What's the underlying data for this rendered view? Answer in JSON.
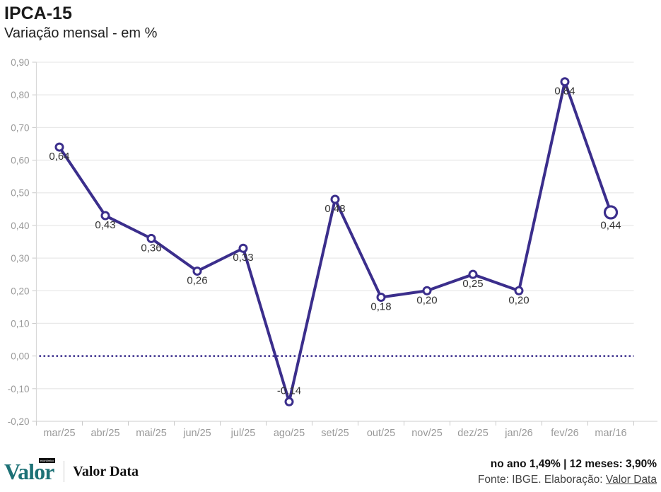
{
  "header": {
    "title": "IPCA-15",
    "subtitle": "Variação mensal - em %"
  },
  "chart_data": {
    "type": "line",
    "title": "IPCA-15",
    "subtitle": "Variação mensal - em %",
    "categories": [
      "mar/25",
      "abr/25",
      "mai/25",
      "jun/25",
      "jul/25",
      "ago/25",
      "set/25",
      "out/25",
      "nov/25",
      "dez/25",
      "jan/26",
      "fev/26",
      "mar/16"
    ],
    "values": [
      0.64,
      0.43,
      0.36,
      0.26,
      0.33,
      -0.14,
      0.48,
      0.18,
      0.2,
      0.25,
      0.2,
      0.84,
      0.44
    ],
    "value_labels": [
      "0,64",
      "0,43",
      "0,36",
      "0,26",
      "0,33",
      "-0,14",
      "0,48",
      "0,18",
      "0,20",
      "0,25",
      "0,20",
      "0,84",
      "0,44"
    ],
    "ylim": [
      -0.2,
      0.9
    ],
    "ytick_labels": [
      "0,90",
      "0,80",
      "0,70",
      "0,60",
      "0,50",
      "0,40",
      "0,30",
      "0,20",
      "0,10",
      "0,00",
      "-0,10",
      "-0,20"
    ],
    "ytick_values": [
      0.9,
      0.8,
      0.7,
      0.6,
      0.5,
      0.4,
      0.3,
      0.2,
      0.1,
      0.0,
      -0.1,
      -0.2
    ],
    "grid": true,
    "legend": "none",
    "zero_line_style": "dotted",
    "line_color": "#3b2e8c",
    "marker_fill": "#ffffff",
    "grid_color": "#e9e9e9",
    "axis_color": "#d9d9d9",
    "tick_color": "#c9c9c9",
    "tick_label_color": "#999999",
    "data_label_color": "#333333",
    "highlight_last_point": true
  },
  "footer": {
    "brand": {
      "logo_text": "Valor",
      "logo_tag": "econômico",
      "suffix_logo_text": "Valor Data"
    },
    "summary": "no ano 1,49% | 12 meses: 3,90%",
    "source_prefix": "Fonte: IBGE. Elaboração: ",
    "source_link": "Valor Data"
  }
}
